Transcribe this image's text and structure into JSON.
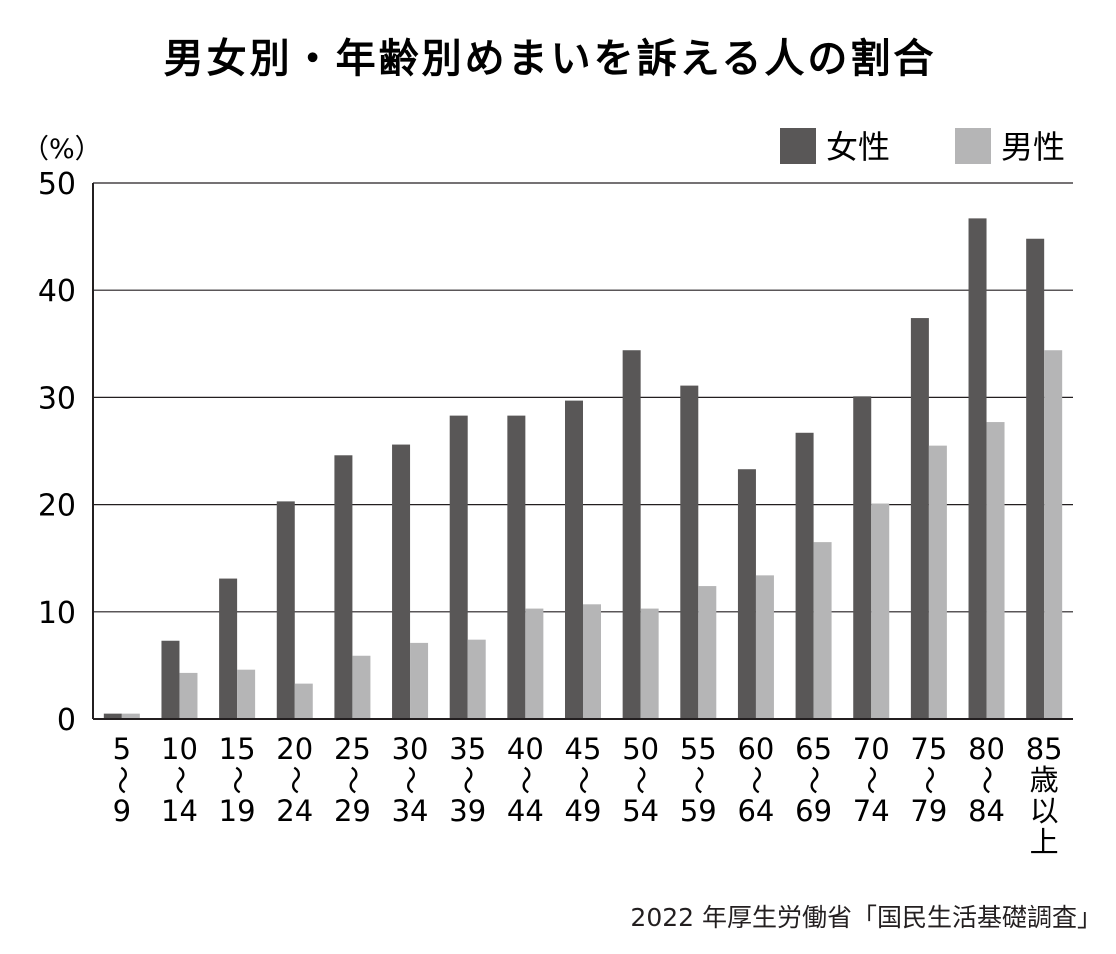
{
  "chart_data": {
    "type": "bar",
    "title": "男女別・年齢別めまいを訴える人の割合",
    "ylabel": "（%）",
    "xlabel": "",
    "ylim": [
      0,
      50
    ],
    "yticks": [
      0,
      10,
      20,
      30,
      40,
      50
    ],
    "grid": true,
    "legend_position": "top-right",
    "categories": [
      [
        "5",
        "〜",
        "9"
      ],
      [
        "10",
        "〜",
        "14"
      ],
      [
        "15",
        "〜",
        "19"
      ],
      [
        "20",
        "〜",
        "24"
      ],
      [
        "25",
        "〜",
        "29"
      ],
      [
        "30",
        "〜",
        "34"
      ],
      [
        "35",
        "〜",
        "39"
      ],
      [
        "40",
        "〜",
        "44"
      ],
      [
        "45",
        "〜",
        "49"
      ],
      [
        "50",
        "〜",
        "54"
      ],
      [
        "55",
        "〜",
        "59"
      ],
      [
        "60",
        "〜",
        "64"
      ],
      [
        "65",
        "〜",
        "69"
      ],
      [
        "70",
        "〜",
        "74"
      ],
      [
        "75",
        "〜",
        "79"
      ],
      [
        "80",
        "〜",
        "84"
      ],
      [
        "85",
        "歳",
        "以",
        "上"
      ]
    ],
    "series": [
      {
        "name": "女性",
        "color": "#595757",
        "values": [
          0.5,
          7.3,
          13.1,
          20.3,
          24.6,
          25.6,
          28.3,
          28.3,
          29.7,
          34.4,
          31.1,
          23.3,
          26.7,
          30.1,
          37.4,
          46.7,
          44.8
        ]
      },
      {
        "name": "男性",
        "color": "#b5b5b6",
        "values": [
          0.5,
          4.3,
          4.6,
          3.3,
          5.9,
          7.1,
          7.4,
          10.3,
          10.7,
          10.3,
          12.4,
          13.4,
          16.5,
          20.1,
          25.5,
          27.7,
          34.4
        ]
      }
    ]
  },
  "source": "2022 年厚生労働省「国民生活基礎調査」"
}
